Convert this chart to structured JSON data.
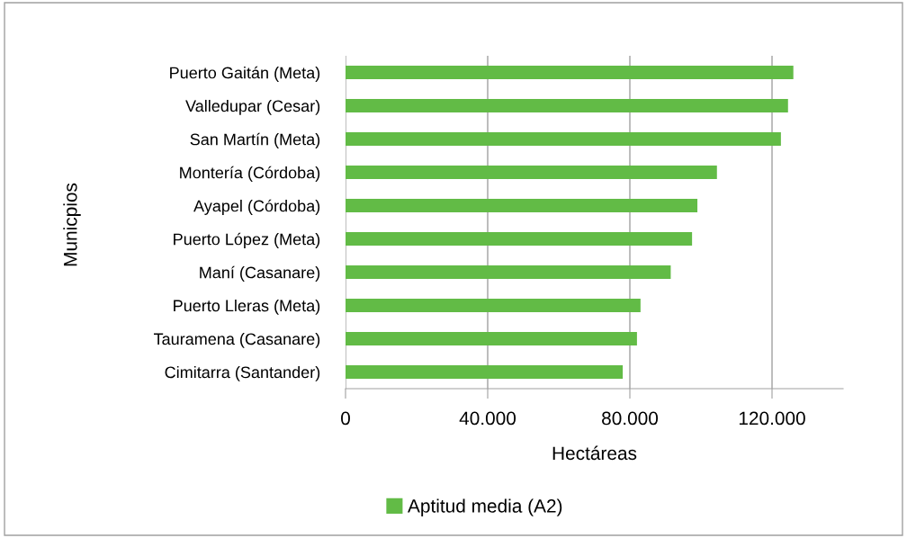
{
  "chart_data": {
    "type": "bar",
    "orientation": "horizontal",
    "xlabel": "Hectáreas",
    "ylabel": "Municpios",
    "categories": [
      "Puerto Gaitán (Meta)",
      "Valledupar (Cesar)",
      "San Martín (Meta)",
      "Montería (Córdoba)",
      "Ayapel (Córdoba)",
      "Puerto López (Meta)",
      "Maní (Casanare)",
      "Puerto Lleras (Meta)",
      "Tauramena (Casanare)",
      "Cimitarra (Santander)"
    ],
    "series": [
      {
        "name": "Aptitud media (A2)",
        "color": "#62bb46",
        "values": [
          126000,
          124500,
          122500,
          104500,
          99000,
          97500,
          91500,
          83000,
          82000,
          78000
        ]
      }
    ],
    "xlim": [
      0,
      140000
    ],
    "xticks": [
      0,
      {
        "value": 40000,
        "label": "40.000"
      },
      {
        "value": 80000,
        "label": "80.000"
      },
      {
        "value": 120000,
        "label": "120.000"
      }
    ],
    "grid": "x",
    "legend": "bottom"
  }
}
